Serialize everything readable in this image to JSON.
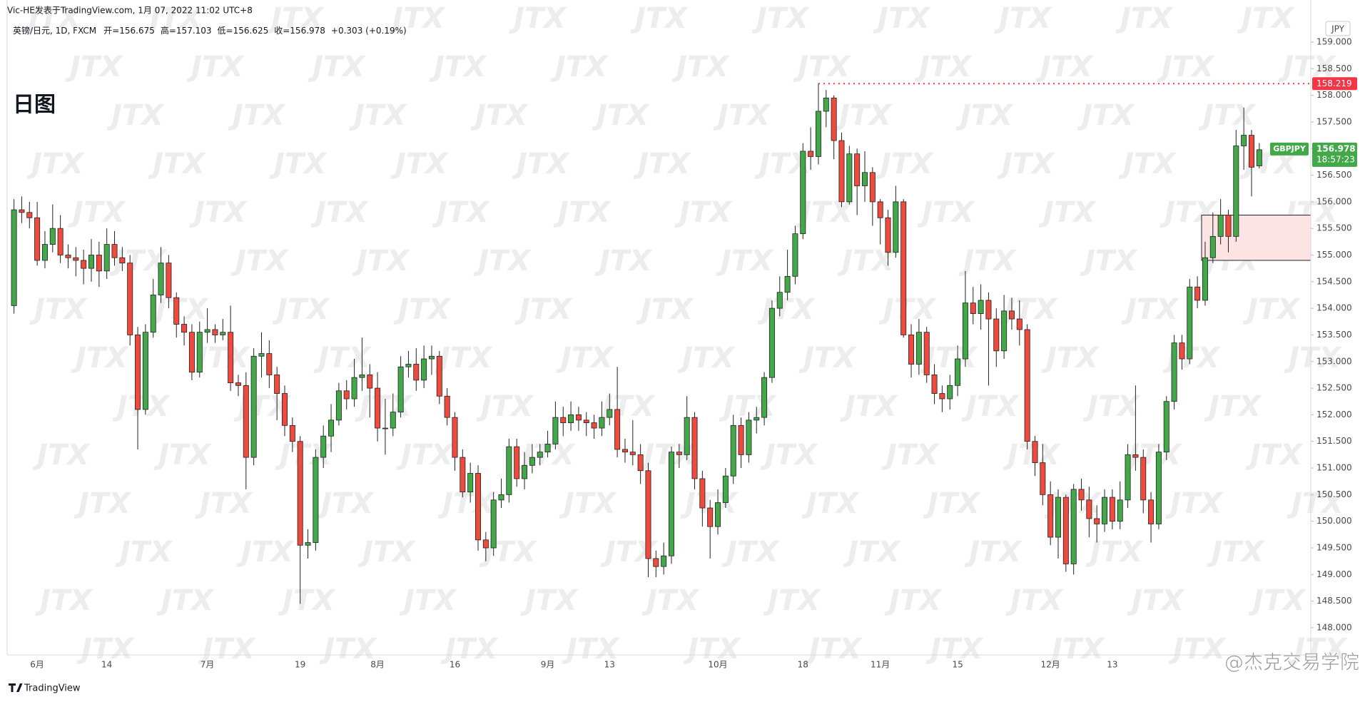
{
  "header": {
    "publisher": "Vic-HE发表于TradingView.com, 1月 07, 2022 11:02 UTC+8"
  },
  "chart_data": {
    "type": "candlestick",
    "symbol": "英镑/日元, 1D, FXCM",
    "legend_labels": [
      "开=",
      "高=",
      "低=",
      "收="
    ],
    "change": "+0.303 (+0.19%)",
    "annotation": "日图",
    "y_unit": "JPY",
    "ticker": "GBPJPY",
    "countdown": "18:57:23",
    "up_color": "#43a84a",
    "down_color": "#ee4a3d",
    "categories": [
      null,
      null,
      null,
      "6月",
      null,
      null,
      null,
      null,
      null,
      null,
      null,
      null,
      "14",
      null,
      null,
      null,
      null,
      null,
      null,
      null,
      null,
      null,
      null,
      null,
      null,
      "7月",
      null,
      null,
      null,
      null,
      null,
      null,
      null,
      null,
      null,
      null,
      null,
      "19",
      null,
      null,
      null,
      null,
      null,
      null,
      null,
      null,
      null,
      "8月",
      null,
      null,
      null,
      null,
      null,
      null,
      null,
      null,
      null,
      "16",
      null,
      null,
      null,
      null,
      null,
      null,
      null,
      null,
      null,
      null,
      null,
      "9月",
      null,
      null,
      null,
      null,
      null,
      null,
      null,
      "13",
      null,
      null,
      null,
      null,
      null,
      null,
      null,
      null,
      null,
      null,
      null,
      null,
      null,
      "10月",
      null,
      null,
      null,
      null,
      null,
      null,
      null,
      null,
      null,
      null,
      "18",
      null,
      null,
      null,
      null,
      null,
      null,
      null,
      null,
      null,
      "11月",
      null,
      null,
      null,
      null,
      null,
      null,
      null,
      null,
      null,
      "15",
      null,
      null,
      null,
      null,
      null,
      null,
      null,
      null,
      null,
      null,
      null,
      "12月",
      null,
      null,
      null,
      null,
      null,
      null,
      null,
      "13",
      null,
      null,
      null,
      null,
      null,
      null,
      null,
      null,
      null,
      null,
      null,
      null,
      null,
      null,
      null,
      null,
      null,
      null,
      null
    ],
    "open": [
      154.05,
      155.85,
      155.8,
      155.7,
      154.9,
      155.2,
      155.5,
      155.0,
      154.95,
      154.9,
      154.75,
      155.0,
      154.7,
      155.2,
      154.95,
      154.85,
      153.5,
      152.1,
      153.55,
      154.25,
      154.85,
      154.2,
      153.7,
      153.55,
      152.8,
      153.55,
      153.6,
      153.5,
      153.55,
      152.6,
      152.55,
      151.2,
      153.1,
      153.15,
      152.75,
      152.4,
      151.8,
      151.5,
      149.55,
      149.6,
      151.2,
      151.6,
      151.9,
      152.45,
      152.3,
      152.7,
      152.75,
      152.5,
      151.75,
      151.75,
      152.05,
      152.9,
      152.95,
      152.65,
      153.05,
      153.1,
      152.35,
      151.95,
      151.2,
      150.55,
      150.9,
      149.65,
      149.5,
      150.4,
      150.5,
      151.4,
      150.8,
      151.05,
      151.2,
      151.3,
      151.45,
      151.95,
      151.85,
      152.0,
      151.9,
      151.85,
      151.75,
      151.95,
      152.1,
      151.35,
      151.3,
      151.25,
      150.95,
      149.3,
      149.15,
      149.35,
      151.3,
      151.25,
      151.95,
      150.8,
      150.25,
      149.9,
      150.35,
      150.85,
      151.8,
      151.25,
      151.9,
      151.95,
      152.7,
      154.0,
      154.3,
      154.6,
      155.4,
      156.95,
      156.85,
      157.7,
      157.95,
      157.15,
      156.0,
      156.9,
      156.3,
      156.55,
      156.0,
      155.7,
      155.05,
      156.0,
      153.5,
      152.95,
      153.55,
      152.75,
      152.4,
      152.3,
      152.55,
      153.05,
      154.1,
      153.9,
      154.15,
      153.8,
      153.2,
      153.95,
      153.8,
      153.6,
      151.5,
      151.1,
      150.5,
      149.7,
      150.45,
      149.2,
      150.6,
      150.4,
      150.05,
      149.95,
      150.45,
      150.0,
      150.4,
      151.25,
      151.2,
      150.4,
      149.95,
      151.3,
      152.25,
      153.35,
      153.05,
      154.4,
      154.15,
      154.95,
      155.35,
      155.75,
      155.35,
      157.05,
      157.25,
      156.675
    ],
    "high": [
      156.05,
      156.1,
      156.0,
      156.0,
      155.45,
      155.95,
      155.75,
      155.2,
      155.15,
      155.1,
      155.3,
      155.25,
      155.5,
      155.45,
      155.15,
      155.0,
      153.65,
      153.7,
      154.55,
      155.15,
      155.0,
      154.3,
      153.85,
      153.7,
      153.75,
      154.0,
      153.7,
      153.8,
      154.05,
      152.75,
      152.8,
      153.25,
      153.55,
      153.4,
      152.9,
      152.55,
      151.95,
      151.6,
      149.85,
      151.35,
      151.8,
      152.2,
      152.6,
      152.65,
      153.05,
      153.45,
      152.95,
      152.8,
      152.3,
      152.4,
      153.1,
      153.2,
      153.25,
      153.3,
      153.3,
      153.2,
      152.5,
      152.05,
      151.35,
      151.1,
      151.05,
      149.8,
      150.55,
      150.8,
      151.55,
      151.55,
      151.3,
      151.45,
      151.45,
      151.7,
      152.25,
      152.15,
      152.25,
      152.15,
      152.05,
      152.0,
      152.25,
      152.4,
      152.9,
      151.55,
      151.9,
      151.45,
      151.1,
      149.45,
      149.6,
      151.4,
      151.45,
      152.35,
      152.05,
      150.95,
      150.4,
      150.6,
      151.0,
      152.0,
      151.95,
      152.05,
      152.15,
      152.8,
      154.15,
      154.6,
      155.1,
      155.55,
      157.1,
      157.4,
      158.219,
      158.1,
      158.0,
      157.3,
      157.05,
      157.0,
      156.95,
      156.65,
      156.05,
      155.85,
      156.3,
      156.05,
      153.7,
      153.8,
      153.65,
      152.95,
      152.55,
      152.75,
      153.3,
      154.7,
      154.4,
      154.45,
      154.3,
      154.0,
      154.25,
      154.2,
      154.15,
      153.7,
      151.6,
      151.45,
      150.75,
      150.6,
      150.5,
      150.7,
      150.8,
      150.65,
      150.3,
      150.6,
      150.6,
      150.75,
      151.45,
      152.55,
      151.35,
      150.55,
      151.45,
      152.35,
      153.5,
      153.5,
      154.55,
      154.6,
      155.25,
      155.8,
      156.05,
      155.85,
      157.35,
      157.77,
      157.35,
      157.103
    ],
    "low": [
      153.9,
      155.6,
      155.5,
      154.8,
      154.75,
      155.05,
      154.85,
      154.75,
      154.6,
      154.45,
      154.5,
      154.4,
      154.55,
      154.8,
      154.7,
      153.3,
      151.35,
      152.0,
      153.45,
      154.1,
      154.0,
      153.45,
      153.3,
      152.65,
      152.7,
      153.35,
      153.35,
      153.4,
      152.45,
      152.35,
      150.6,
      151.05,
      152.7,
      152.5,
      151.9,
      151.6,
      151.3,
      148.45,
      149.3,
      149.45,
      151.0,
      151.3,
      151.8,
      152.1,
      152.15,
      152.45,
      151.95,
      151.5,
      151.25,
      151.6,
      151.95,
      152.7,
      152.45,
      152.5,
      152.75,
      152.2,
      151.8,
      150.95,
      150.45,
      150.35,
      149.45,
      149.25,
      149.35,
      150.25,
      150.35,
      150.65,
      150.6,
      150.9,
      151.05,
      151.2,
      151.35,
      151.6,
      151.7,
      151.7,
      151.6,
      151.55,
      151.6,
      151.8,
      151.2,
      151.1,
      151.05,
      150.7,
      148.95,
      148.95,
      149.0,
      149.2,
      151.0,
      151.15,
      150.6,
      149.9,
      149.3,
      149.75,
      150.25,
      150.7,
      151.0,
      151.1,
      151.65,
      151.8,
      152.6,
      153.85,
      154.15,
      154.45,
      155.3,
      156.6,
      156.7,
      157.4,
      156.8,
      155.9,
      155.95,
      155.75,
      156.0,
      155.55,
      155.2,
      154.8,
      154.95,
      153.45,
      152.7,
      152.75,
      152.6,
      152.2,
      152.05,
      152.1,
      152.35,
      152.9,
      153.7,
      153.6,
      152.55,
      152.9,
      153.05,
      153.6,
      153.3,
      151.35,
      150.85,
      150.3,
      149.55,
      149.3,
      149.05,
      149.0,
      150.2,
      149.7,
      149.6,
      149.8,
      149.85,
      149.85,
      150.25,
      150.95,
      150.15,
      149.6,
      149.85,
      151.15,
      152.1,
      152.85,
      152.95,
      154.0,
      154.05,
      154.85,
      155.2,
      155.05,
      155.25,
      156.6,
      156.1,
      156.625
    ],
    "close": [
      155.85,
      155.8,
      155.7,
      154.9,
      155.2,
      155.5,
      155.0,
      154.95,
      154.9,
      154.75,
      155.0,
      154.7,
      155.2,
      154.95,
      154.85,
      153.5,
      152.1,
      153.55,
      154.25,
      154.85,
      154.2,
      153.7,
      153.55,
      152.8,
      153.55,
      153.6,
      153.5,
      153.55,
      152.6,
      152.55,
      151.2,
      153.1,
      153.15,
      152.75,
      152.4,
      151.8,
      151.5,
      149.55,
      149.6,
      151.2,
      151.6,
      151.9,
      152.45,
      152.3,
      152.7,
      152.75,
      152.5,
      151.75,
      151.75,
      152.05,
      152.9,
      152.95,
      152.65,
      153.05,
      153.1,
      152.35,
      151.95,
      151.2,
      150.55,
      150.9,
      149.65,
      149.5,
      150.4,
      150.5,
      151.4,
      150.8,
      151.05,
      151.2,
      151.3,
      151.45,
      151.95,
      151.85,
      152.0,
      151.9,
      151.85,
      151.75,
      151.95,
      152.1,
      151.35,
      151.3,
      151.25,
      150.95,
      149.3,
      149.15,
      149.35,
      151.3,
      151.25,
      151.95,
      150.8,
      150.25,
      149.9,
      150.35,
      150.85,
      151.8,
      151.25,
      151.9,
      151.95,
      152.7,
      154.0,
      154.3,
      154.6,
      155.4,
      156.95,
      156.85,
      157.7,
      157.95,
      157.15,
      156.0,
      156.9,
      156.3,
      156.55,
      156.0,
      155.7,
      155.05,
      156.0,
      153.5,
      152.95,
      153.55,
      152.75,
      152.4,
      152.3,
      152.55,
      153.05,
      154.1,
      153.9,
      154.15,
      153.8,
      153.2,
      153.95,
      153.8,
      153.6,
      151.5,
      151.1,
      150.5,
      149.7,
      150.45,
      149.2,
      150.6,
      150.4,
      150.05,
      149.95,
      150.45,
      150.0,
      150.4,
      151.25,
      151.2,
      150.4,
      149.95,
      151.3,
      152.25,
      153.35,
      153.05,
      154.4,
      154.15,
      154.95,
      155.35,
      155.75,
      155.35,
      157.05,
      157.25,
      156.65,
      156.978
    ],
    "ylim": [
      147.49,
      159.79
    ],
    "yticks": [
      {
        "value": 148,
        "label": "148.000"
      },
      {
        "value": 148.5,
        "label": "148.500"
      },
      {
        "value": 149,
        "label": "149.000"
      },
      {
        "value": 149.5,
        "label": "149.500"
      },
      {
        "value": 150,
        "label": "150.000"
      },
      {
        "value": 150.5,
        "label": "150.500"
      },
      {
        "value": 151,
        "label": "151.000"
      },
      {
        "value": 151.5,
        "label": "151.500"
      },
      {
        "value": 152,
        "label": "152.000"
      },
      {
        "value": 152.5,
        "label": "152.500"
      },
      {
        "value": 153,
        "label": "153.000"
      },
      {
        "value": 153.5,
        "label": "153.500"
      },
      {
        "value": 154,
        "label": "154.000"
      },
      {
        "value": 154.5,
        "label": "154.500"
      },
      {
        "value": 155,
        "label": "155.000"
      },
      {
        "value": 155.5,
        "label": "155.500"
      },
      {
        "value": 156,
        "label": "156.000"
      },
      {
        "value": 156.5,
        "label": "156.500"
      },
      {
        "value": 157,
        "label": "157.000"
      },
      {
        "value": 157.5,
        "label": "157.500"
      },
      {
        "value": 158,
        "label": "158.000"
      },
      {
        "value": 158.5,
        "label": "158.500"
      },
      {
        "value": 159,
        "label": "159.000"
      }
    ],
    "grid": false,
    "zone": {
      "from": 154,
      "top": 155.75,
      "bottom": 154.9
    }
  },
  "watermarks": {
    "pattern": "JTX",
    "brand": "TradingView",
    "credit": "@杰克交易学院"
  }
}
